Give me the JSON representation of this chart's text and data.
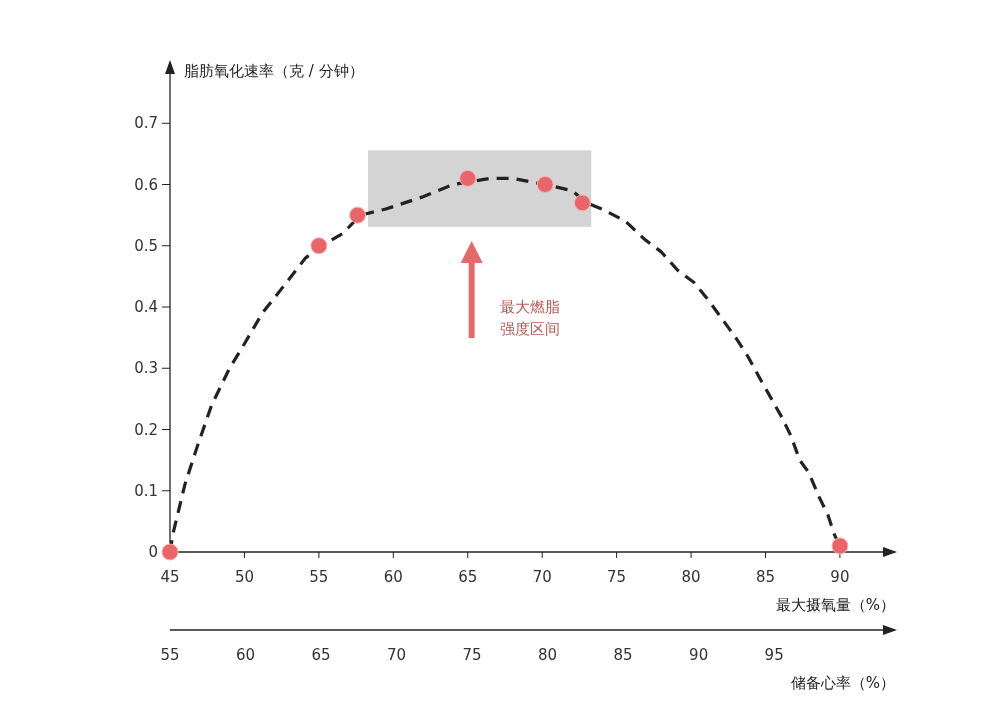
{
  "chart_data": {
    "type": "scatter",
    "xlabel": "最大摄氧量（%）",
    "ylabel": "脂肪氧化速率（克 / 分钟）",
    "x2label": "储备心率（%）",
    "xlim": [
      45,
      93.7
    ],
    "xticks": [
      45,
      50,
      55,
      60,
      65,
      70,
      75,
      80,
      85,
      90
    ],
    "x2lim": [
      55,
      103
    ],
    "x2ticks": [
      55,
      60,
      65,
      70,
      75,
      80,
      85,
      90,
      95
    ],
    "ylim": [
      0,
      0.8
    ],
    "yticks": [
      0,
      0.1,
      0.2,
      0.3,
      0.4,
      0.5,
      0.6,
      0.7
    ],
    "marker": "circle",
    "series": [
      {
        "type": "line",
        "line_style": "dashed",
        "marker": "none",
        "color": "#222222",
        "x": [
          45,
          45.2,
          46,
          46.8,
          47.8,
          49,
          50,
          51.2,
          52.5,
          54.1,
          55.2,
          56.6,
          57.8,
          59.5,
          62,
          64,
          66.5,
          68,
          70.2,
          72,
          73,
          74,
          75.6,
          76.9,
          78,
          79.1,
          80.2,
          81.2,
          82.1,
          83,
          83.8,
          84.7,
          85.4,
          86.1,
          86.7,
          87.3,
          87.9,
          88.6,
          89.2,
          89.6,
          90
        ],
        "values": [
          0,
          0.03,
          0.11,
          0.17,
          0.24,
          0.3,
          0.34,
          0.39,
          0.43,
          0.48,
          0.5,
          0.52,
          0.55,
          0.56,
          0.58,
          0.6,
          0.61,
          0.61,
          0.6,
          0.59,
          0.57,
          0.56,
          0.54,
          0.51,
          0.49,
          0.46,
          0.44,
          0.41,
          0.38,
          0.35,
          0.32,
          0.28,
          0.25,
          0.22,
          0.19,
          0.15,
          0.13,
          0.09,
          0.06,
          0.03,
          0.01
        ]
      },
      {
        "color": "#e8666a",
        "x": [
          45,
          55,
          57.6,
          65,
          70.2,
          72.7,
          90
        ],
        "values": [
          0,
          0.5,
          0.55,
          0.61,
          0.6,
          0.57,
          0.01
        ]
      }
    ],
    "bands": [
      {
        "axis": "x",
        "from": 58.3,
        "to": 73.3,
        "color": "#d4d4d4"
      }
    ],
    "annotations": [
      "最大燃脂强度区间"
    ]
  }
}
